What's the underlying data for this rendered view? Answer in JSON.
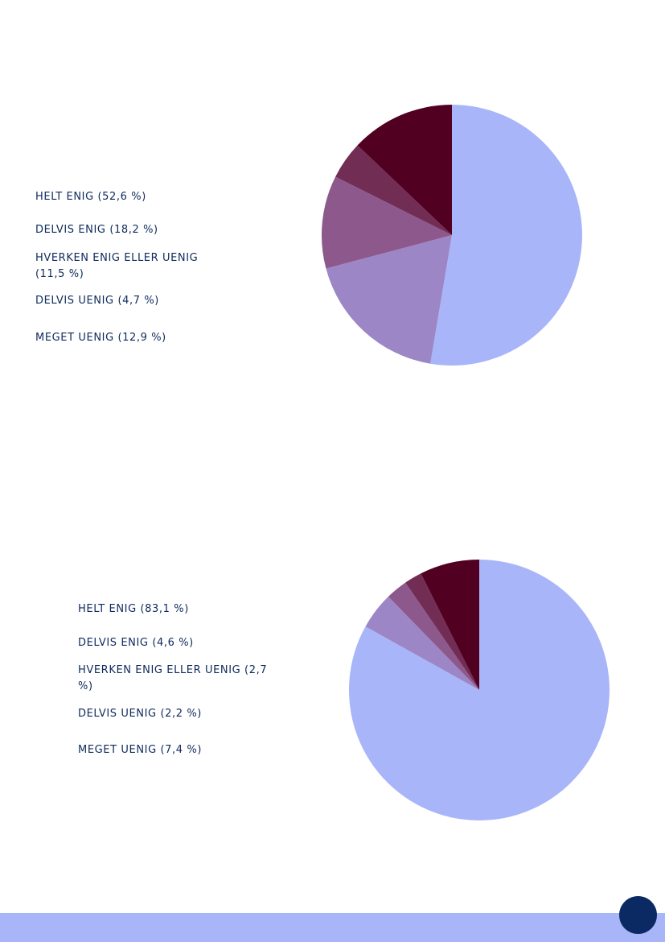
{
  "chart_data": [
    {
      "type": "pie",
      "categories": [
        "HELT ENIG (52,6 %)",
        "DELVIS ENIG (18,2 %)",
        "HVERKEN ENIG ELLER UENIG (11,5 %)",
        "DELVIS UENIG (4,7 %)",
        "MEGET UENIG (12,9 %)"
      ],
      "values": [
        52.6,
        18.2,
        11.5,
        4.7,
        12.9
      ],
      "colors": [
        "#a8b5f8",
        "#9c86c6",
        "#8d588c",
        "#722d55",
        "#520021"
      ],
      "legend_position": "left"
    },
    {
      "type": "pie",
      "categories": [
        "HELT ENIG (83,1 %)",
        "DELVIS ENIG (4,6 %)",
        "HVERKEN ENIG ELLER UENIG (2,7 %)",
        "DELVIS UENIG (2,2 %)",
        "MEGET UENIG (7,4 %)"
      ],
      "values": [
        83.1,
        4.6,
        2.7,
        2.2,
        7.4
      ],
      "colors": [
        "#a8b5f8",
        "#9c86c6",
        "#8d588c",
        "#722d55",
        "#520021"
      ],
      "legend_position": "left"
    }
  ],
  "theme": {
    "footer_color": "#a8b5f8",
    "page_dot_color": "#0b2a63",
    "text_color": "#0e2a5c"
  }
}
